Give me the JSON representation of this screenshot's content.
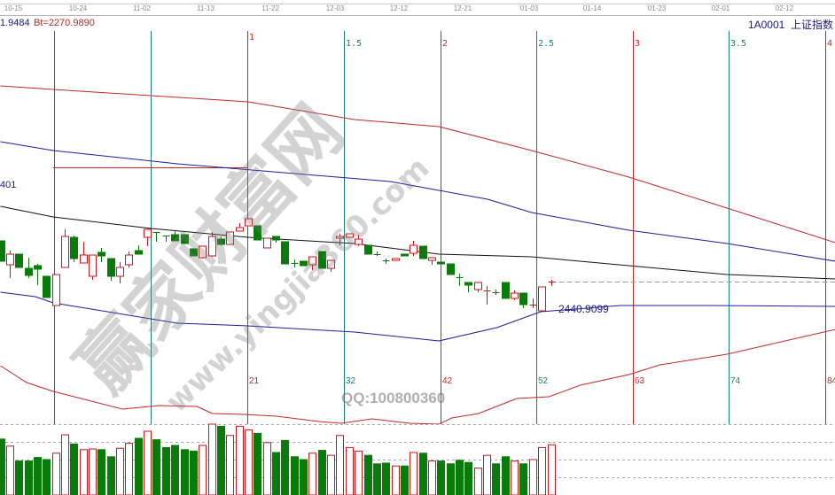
{
  "header": {
    "date_ticks": [
      "10-15",
      "10-24",
      "11-02",
      "11-13",
      "11-22",
      "12-03",
      "12-12",
      "12-21",
      "01-03",
      "01-14",
      "01-23",
      "02-01",
      "02-12"
    ],
    "left_value": "1.9484",
    "bt_value": "Bt=2270.9890",
    "symbol": "1A0001",
    "index_name": "上证指数"
  },
  "left_label": "401",
  "price_label": "2440.9099",
  "fib_ratio_labels": [
    "1",
    "1.5",
    "2",
    "2.5",
    "3",
    "3.5",
    "4"
  ],
  "fib_count_labels": [
    "21",
    "32",
    "42",
    "52",
    "63",
    "74",
    "84"
  ],
  "watermark": {
    "site_name": "赢家财富网",
    "url": "www.yingjia360.com",
    "qq": "QQ:100800360"
  },
  "colors": {
    "up": "#c8161d",
    "down": "#0a7a0a",
    "band_outer": "#c0282a",
    "band_inner": "#1c1c9c",
    "middle": "#111111",
    "fib_red": "#c0282a",
    "fib_teal": "#1e7a7a"
  },
  "chart_data": {
    "type": "candlestick",
    "candles_ohlc": [
      [
        2517,
        2517,
        2494,
        2494
      ],
      [
        2490,
        2506,
        2475,
        2502
      ],
      [
        2502,
        2502,
        2487,
        2487
      ],
      [
        2486,
        2498,
        2475,
        2478
      ],
      [
        2489,
        2491,
        2467,
        2485
      ],
      [
        2477,
        2477,
        2453,
        2453
      ],
      [
        2444,
        2479,
        2444,
        2479
      ],
      [
        2487,
        2530,
        2487,
        2522
      ],
      [
        2521,
        2523,
        2493,
        2497
      ],
      [
        2492,
        2516,
        2492,
        2501
      ],
      [
        2477,
        2501,
        2473,
        2501
      ],
      [
        2504,
        2509,
        2493,
        2500
      ],
      [
        2497,
        2497,
        2472,
        2477
      ],
      [
        2477,
        2493,
        2469,
        2487
      ],
      [
        2490,
        2505,
        2487,
        2501
      ],
      [
        2506,
        2512,
        2502,
        2502
      ],
      [
        2521,
        2530,
        2511,
        2530
      ],
      [
        2527,
        2527,
        2516,
        2526
      ],
      [
        2523,
        2523,
        2516,
        2522
      ],
      [
        2524,
        2528,
        2517,
        2517
      ],
      [
        2524,
        2524,
        2514,
        2514
      ],
      [
        2508,
        2508,
        2500,
        2500
      ],
      [
        2498,
        2511,
        2497,
        2511
      ],
      [
        2500,
        2527,
        2499,
        2522
      ],
      [
        2519,
        2522,
        2512,
        2513
      ],
      [
        2513,
        2527,
        2513,
        2527
      ],
      [
        2528,
        2537,
        2528,
        2532
      ],
      [
        2534,
        2542,
        2534,
        2542
      ],
      [
        2534,
        2534,
        2518,
        2518
      ],
      [
        2509,
        2520,
        2509,
        2520
      ],
      [
        2522,
        2522,
        2515,
        2518
      ],
      [
        2516,
        2516,
        2491,
        2491
      ],
      [
        2492,
        2496,
        2487,
        2491
      ],
      [
        2494,
        2494,
        2489,
        2489
      ],
      [
        2490,
        2499,
        2484,
        2499
      ],
      [
        2505,
        2505,
        2486,
        2486
      ],
      [
        2486,
        2495,
        2482,
        2495
      ],
      [
        2520,
        2525,
        2512,
        2522
      ],
      [
        2521,
        2525,
        2521,
        2525
      ],
      [
        2513,
        2524,
        2511,
        2519
      ],
      [
        2512,
        2512,
        2502,
        2502
      ],
      [
        2502,
        2505,
        2500,
        2501
      ],
      [
        2495,
        2497,
        2491,
        2494
      ],
      [
        2495,
        2497,
        2495,
        2497
      ],
      [
        2502,
        2502,
        2500,
        2500
      ],
      [
        2503,
        2517,
        2500,
        2512
      ],
      [
        2511,
        2511,
        2497,
        2497
      ],
      [
        2495,
        2498,
        2490,
        2498
      ],
      [
        2493,
        2493,
        2491,
        2491
      ],
      [
        2491,
        2491,
        2479,
        2479
      ],
      [
        2476,
        2480,
        2466,
        2475
      ],
      [
        2470,
        2470,
        2459,
        2467
      ],
      [
        2462,
        2470,
        2459,
        2470
      ],
      [
        2460,
        2466,
        2445,
        2461
      ],
      [
        2459,
        2462,
        2456,
        2458
      ],
      [
        2470,
        2470,
        2452,
        2452
      ],
      [
        2452,
        2461,
        2450,
        2458
      ],
      [
        2458,
        2458,
        2441,
        2445
      ],
      [
        2444,
        2452,
        2441,
        2445
      ],
      [
        2438,
        2465,
        2438,
        2465
      ],
      [
        2470,
        2473,
        2466,
        2471
      ]
    ],
    "volume_relative": [
      79,
      69,
      48,
      48,
      53,
      50,
      59,
      85,
      72,
      64,
      65,
      64,
      54,
      66,
      73,
      80,
      90,
      78,
      67,
      70,
      64,
      62,
      70,
      100,
      97,
      84,
      97,
      92,
      87,
      74,
      60,
      77,
      54,
      50,
      59,
      63,
      56,
      84,
      67,
      62,
      56,
      44,
      45,
      41,
      41,
      60,
      59,
      48,
      48,
      44,
      49,
      46,
      38,
      56,
      44,
      54,
      48,
      44,
      50,
      67,
      71
    ],
    "volume_up": [
      false,
      true,
      false,
      false,
      false,
      false,
      true,
      true,
      false,
      true,
      true,
      false,
      false,
      true,
      true,
      false,
      true,
      false,
      false,
      false,
      false,
      false,
      true,
      true,
      false,
      true,
      true,
      true,
      false,
      true,
      false,
      false,
      false,
      false,
      true,
      false,
      true,
      true,
      true,
      true,
      false,
      false,
      false,
      true,
      false,
      true,
      false,
      true,
      false,
      false,
      false,
      false,
      true,
      true,
      false,
      false,
      true,
      false,
      true,
      true,
      true
    ],
    "lines": {
      "upper_outer": [
        [
          0,
          2692
        ],
        [
          5.75,
          2688
        ],
        [
          27,
          2674
        ],
        [
          38.6,
          2654
        ],
        [
          47.8,
          2646
        ],
        [
          57.9,
          2619
        ],
        [
          68.5,
          2589
        ],
        [
          79.2,
          2554
        ],
        [
          91,
          2515
        ]
      ],
      "upper_inner": [
        [
          0,
          2629
        ],
        [
          5.75,
          2619
        ],
        [
          19.3,
          2604
        ],
        [
          36.7,
          2589
        ],
        [
          42.5,
          2584
        ],
        [
          53.1,
          2564
        ],
        [
          57.9,
          2549
        ],
        [
          68.5,
          2529
        ],
        [
          79.2,
          2514
        ],
        [
          91,
          2494
        ]
      ],
      "middle": [
        [
          0,
          2556
        ],
        [
          5.75,
          2544
        ],
        [
          16.4,
          2531
        ],
        [
          27,
          2521
        ],
        [
          38.6,
          2514
        ],
        [
          47.8,
          2502
        ],
        [
          57.9,
          2499
        ],
        [
          68.5,
          2489
        ],
        [
          79.2,
          2479
        ],
        [
          91,
          2474
        ]
      ],
      "lower_inner": [
        [
          0,
          2459
        ],
        [
          3.8,
          2454
        ],
        [
          5.75,
          2447
        ],
        [
          19.3,
          2424
        ],
        [
          27,
          2421
        ],
        [
          38.6,
          2414
        ],
        [
          47.8,
          2404
        ],
        [
          54.1,
          2419
        ],
        [
          58.9,
          2437
        ],
        [
          67.6,
          2444
        ],
        [
          77.3,
          2444
        ],
        [
          91,
          2443
        ]
      ],
      "lower_outer": [
        [
          0,
          2376
        ],
        [
          2.85,
          2357
        ],
        [
          5.75,
          2347
        ],
        [
          13.3,
          2327
        ],
        [
          17.3,
          2331
        ],
        [
          21.4,
          2330
        ],
        [
          23.1,
          2322
        ],
        [
          26.6,
          2321
        ],
        [
          30.1,
          2319
        ],
        [
          34.7,
          2313
        ],
        [
          37.1,
          2311
        ],
        [
          40.5,
          2316
        ],
        [
          44.6,
          2311
        ],
        [
          47.8,
          2310
        ],
        [
          49.2,
          2317
        ],
        [
          52.1,
          2322
        ],
        [
          56.3,
          2339
        ],
        [
          59.8,
          2341
        ],
        [
          63.2,
          2354
        ],
        [
          68.5,
          2366
        ],
        [
          71.9,
          2377
        ],
        [
          79.2,
          2389
        ],
        [
          91,
          2417
        ]
      ]
    },
    "box_top_level": 2600,
    "last_close_level": 2471
  }
}
